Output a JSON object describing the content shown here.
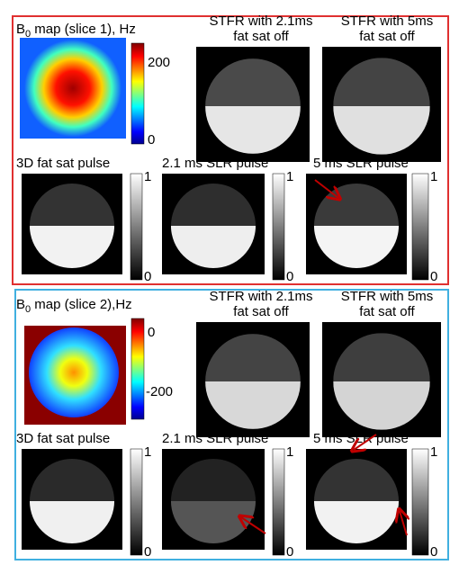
{
  "panels": [
    {
      "b0": {
        "title": {
          "main": "B",
          "sub": "0",
          "rest": " map (slice 1), Hz"
        },
        "colorbar_ticks": [
          "200",
          "0"
        ]
      },
      "top_images": [
        {
          "title": [
            "STFR with 2.1ms",
            "fat sat off"
          ]
        },
        {
          "title": [
            "STFR with 5ms",
            "fat sat off"
          ]
        }
      ],
      "bottom_images": [
        {
          "title": "3D fat sat pulse",
          "colorbar_ticks": [
            "1",
            "0"
          ]
        },
        {
          "title": "2.1 ms SLR pulse",
          "colorbar_ticks": [
            "1",
            "0"
          ]
        },
        {
          "title": "5 ms SLR pulse",
          "colorbar_ticks": [
            "1",
            "0"
          ]
        }
      ]
    },
    {
      "b0": {
        "title": {
          "main": "B",
          "sub": "0",
          "rest": " map (slice 2),Hz"
        },
        "colorbar_ticks": [
          "0",
          "-200"
        ]
      },
      "top_images": [
        {
          "title": [
            "STFR with 2.1ms",
            "fat sat off"
          ]
        },
        {
          "title": [
            "STFR with 5ms",
            "fat sat off"
          ]
        }
      ],
      "bottom_images": [
        {
          "title": "3D fat sat pulse",
          "colorbar_ticks": [
            "1",
            "0"
          ]
        },
        {
          "title": "2.1 ms SLR pulse",
          "colorbar_ticks": [
            "1",
            "0"
          ]
        },
        {
          "title": "5 ms SLR pulse",
          "colorbar_ticks": [
            "1",
            "0"
          ]
        }
      ]
    }
  ]
}
